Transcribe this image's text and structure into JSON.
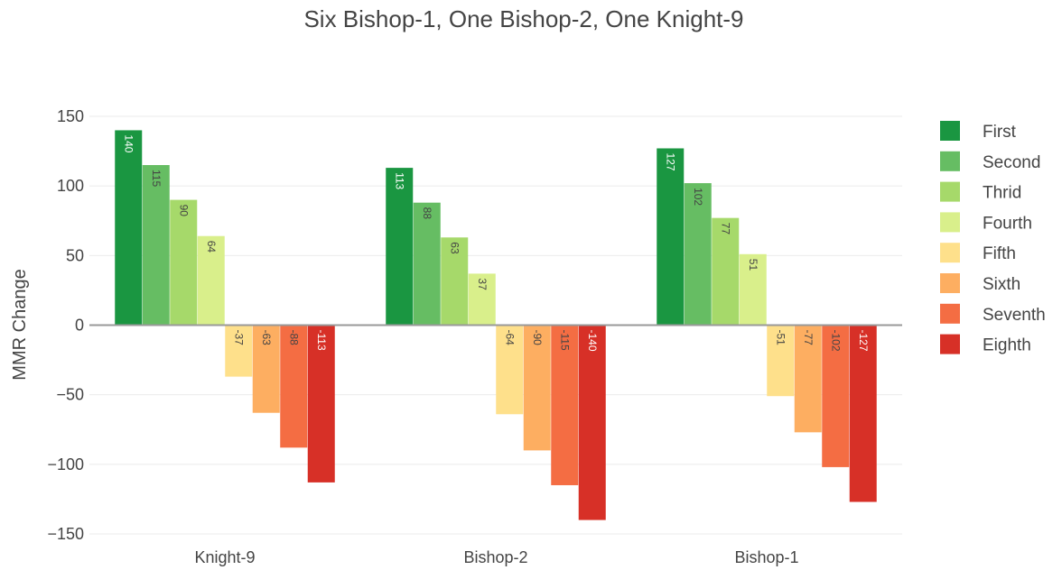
{
  "chart_data": {
    "type": "bar",
    "title": "Six Bishop-1, One Bishop-2, One Knight-9",
    "xlabel": "",
    "ylabel": "MMR Change",
    "ylim": [
      -155,
      155
    ],
    "yticks": [
      150,
      100,
      50,
      0,
      -50,
      -100,
      -150
    ],
    "ytick_labels": [
      "150",
      "100",
      "50",
      "0",
      "−50",
      "−100",
      "−150"
    ],
    "grid": true,
    "legend_position": "right",
    "categories": [
      "Knight-9",
      "Bishop-2",
      "Bishop-1"
    ],
    "series": [
      {
        "name": "First",
        "color": "#1a9641",
        "label_color": "#ffffff",
        "values": [
          140,
          113,
          127
        ]
      },
      {
        "name": "Second",
        "color": "#66bd63",
        "label_color": "#444444",
        "values": [
          115,
          88,
          102
        ]
      },
      {
        "name": "Thrid",
        "color": "#a6d96a",
        "label_color": "#444444",
        "values": [
          90,
          63,
          77
        ]
      },
      {
        "name": "Fourth",
        "color": "#d9ef8b",
        "label_color": "#444444",
        "values": [
          64,
          37,
          51
        ]
      },
      {
        "name": "Fifth",
        "color": "#fee08b",
        "label_color": "#444444",
        "values": [
          -37,
          -64,
          -51
        ]
      },
      {
        "name": "Sixth",
        "color": "#fdae61",
        "label_color": "#444444",
        "values": [
          -63,
          -90,
          -77
        ]
      },
      {
        "name": "Seventh",
        "color": "#f46d43",
        "label_color": "#444444",
        "values": [
          -88,
          -115,
          -102
        ]
      },
      {
        "name": "Eighth",
        "color": "#d73027",
        "label_color": "#ffffff",
        "values": [
          -113,
          -140,
          -127
        ]
      }
    ]
  }
}
